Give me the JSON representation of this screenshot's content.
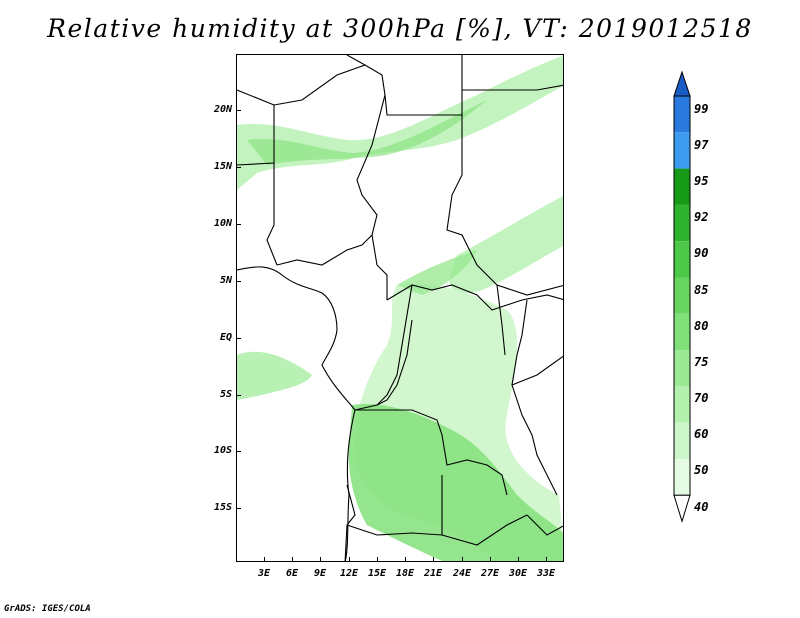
{
  "title": "Relative humidity at 300hPa [%], VT: 2019012518",
  "footer": "GrADS: IGES/COLA",
  "lat_labels": [
    "20N",
    "15N",
    "10N",
    "5N",
    "EQ",
    "5S",
    "10S",
    "15S"
  ],
  "lon_labels": [
    "3E",
    "6E",
    "9E",
    "12E",
    "15E",
    "18E",
    "21E",
    "24E",
    "27E",
    "30E",
    "33E"
  ],
  "colorbar": {
    "levels": [
      "40",
      "50",
      "60",
      "70",
      "75",
      "80",
      "85",
      "90",
      "92",
      "95",
      "97",
      "99"
    ],
    "colors": [
      "#ffffff",
      "#e6fbe4",
      "#cdf6ca",
      "#b4f1af",
      "#9be994",
      "#82e07a",
      "#69d561",
      "#4ec848",
      "#2fb22e",
      "#169a17",
      "#3d9bf0",
      "#2a79de",
      "#1a5cc4"
    ]
  }
}
